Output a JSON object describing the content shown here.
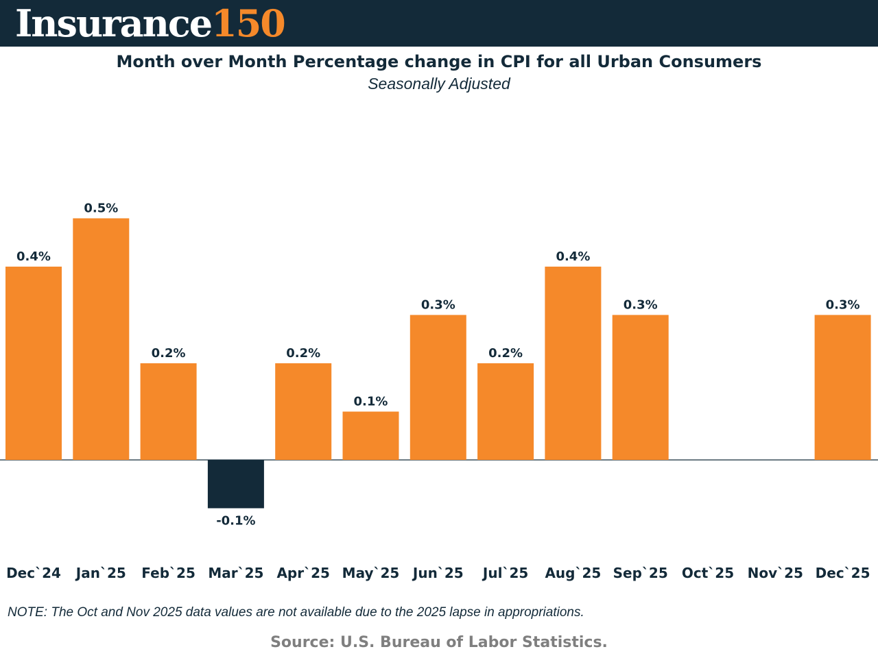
{
  "brand": {
    "word": "Insurance",
    "number": "150"
  },
  "chart_data": {
    "type": "bar",
    "title": "Month over Month Percentage change in CPI for all Urban Consumers",
    "subtitle": "Seasonally Adjusted",
    "xlabel": "",
    "ylabel": "",
    "categories": [
      "Dec`24",
      "Jan`25",
      "Feb`25",
      "Mar`25",
      "Apr`25",
      "May`25",
      "Jun`25",
      "Jul`25",
      "Aug`25",
      "Sep`25",
      "Oct`25",
      "Nov`25",
      "Dec`25"
    ],
    "values": [
      0.4,
      0.5,
      0.2,
      -0.1,
      0.2,
      0.1,
      0.3,
      0.2,
      0.4,
      0.3,
      null,
      null,
      0.3
    ],
    "labels": [
      "0.4%",
      "0.5%",
      "0.2%",
      "-0.1%",
      "0.2%",
      "0.1%",
      "0.3%",
      "0.2%",
      "0.4%",
      "0.3%",
      "",
      "",
      "0.3%"
    ],
    "ylim": [
      -0.1,
      0.5
    ],
    "grid": false,
    "colors": {
      "positive": "#f5892a",
      "negative": "#132a39",
      "text": "#132a39"
    }
  },
  "footer": {
    "note": "NOTE: The Oct and Nov 2025 data values are not available due to the 2025 lapse in appropriations.",
    "source": "Source: U.S. Bureau of Labor Statistics."
  }
}
